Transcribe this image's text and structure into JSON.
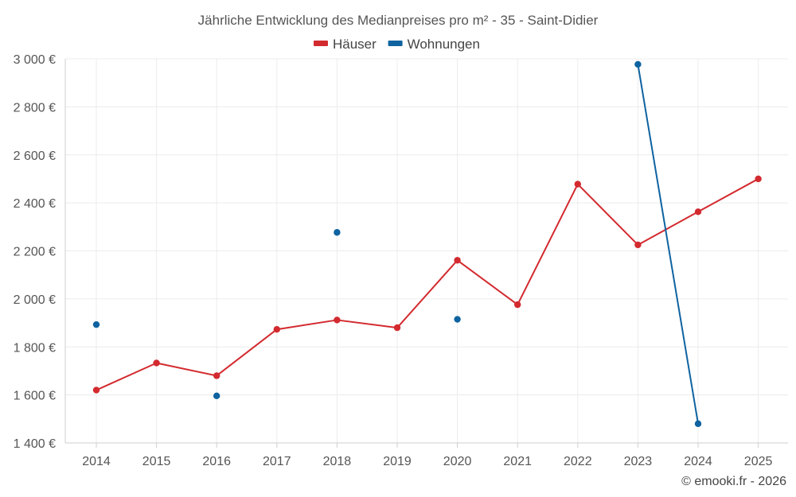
{
  "chart_data": {
    "type": "line",
    "title": "Jährliche Entwicklung des Medianpreises pro m² - 35 - Saint-Didier",
    "categories": [
      "2014",
      "2015",
      "2016",
      "2017",
      "2018",
      "2019",
      "2020",
      "2021",
      "2022",
      "2023",
      "2024",
      "2025"
    ],
    "series": [
      {
        "name": "Häuser",
        "color": "#d32a2f",
        "values": [
          1620,
          1733,
          1680,
          1873,
          1912,
          1880,
          2161,
          1976,
          2478,
          2225,
          2363,
          2500
        ]
      },
      {
        "name": "Wohnungen",
        "color": "#0e63a0",
        "values": [
          1893,
          null,
          1596,
          null,
          2277,
          null,
          1915,
          null,
          null,
          2977,
          1480,
          null
        ]
      }
    ],
    "ylim": [
      1400,
      3000
    ],
    "yticks": [
      1400,
      1600,
      1800,
      2000,
      2200,
      2400,
      2600,
      2800,
      3000
    ],
    "ytick_labels": [
      "1 400 €",
      "1 600 €",
      "1 800 €",
      "2 000 €",
      "2 200 €",
      "2 400 €",
      "2 600 €",
      "2 800 €",
      "3 000 €"
    ],
    "grid": true,
    "legend_position": "top-center",
    "xlabel": "",
    "ylabel": ""
  },
  "credit": "© emooki.fr - 2026"
}
